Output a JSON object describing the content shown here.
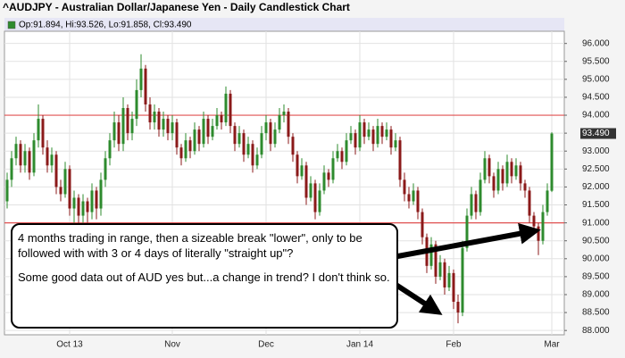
{
  "chart_data": {
    "type": "candlestick",
    "title": "^AUDJPY - Australian Dollar/Japanese Yen - Daily Candlestick Chart",
    "legend_text": "Op:91.894, Hi:93.526, Lo:91.858, Cl:93.490",
    "last_price_label": "93.490",
    "up_color": "#2e8b2e",
    "down_color": "#8b1a1a",
    "hlines": [
      94,
      91
    ],
    "hline_color": "#e05050",
    "grid": true,
    "ylim": [
      87.88,
      96.34
    ],
    "yticks": [
      {
        "value": 88,
        "label": "88.000"
      },
      {
        "value": 88.5,
        "label": "88.500"
      },
      {
        "value": 89,
        "label": "89.000"
      },
      {
        "value": 89.5,
        "label": "89.500"
      },
      {
        "value": 90,
        "label": "90.000"
      },
      {
        "value": 90.5,
        "label": "90.500"
      },
      {
        "value": 91,
        "label": "91.000"
      },
      {
        "value": 91.5,
        "label": "91.500"
      },
      {
        "value": 92,
        "label": "92.000"
      },
      {
        "value": 92.5,
        "label": "92.500"
      },
      {
        "value": 93,
        "label": "93.000"
      },
      {
        "value": 93.5,
        "label": "93.500"
      },
      {
        "value": 94,
        "label": "94.000"
      },
      {
        "value": 94.5,
        "label": "94.500"
      },
      {
        "value": 95,
        "label": "95.000"
      },
      {
        "value": 95.5,
        "label": "95.500"
      },
      {
        "value": 96,
        "label": "96.000"
      }
    ],
    "categories": [
      null,
      null,
      null,
      null,
      null,
      null,
      null,
      null,
      null,
      null,
      null,
      null,
      null,
      null,
      "Oct 13",
      null,
      null,
      null,
      null,
      null,
      null,
      null,
      null,
      null,
      null,
      null,
      null,
      null,
      null,
      null,
      null,
      null,
      null,
      null,
      null,
      null,
      null,
      "Nov",
      null,
      null,
      null,
      null,
      null,
      null,
      null,
      null,
      null,
      null,
      null,
      null,
      null,
      null,
      null,
      null,
      null,
      null,
      null,
      null,
      "Dec",
      null,
      null,
      null,
      null,
      null,
      null,
      null,
      null,
      null,
      null,
      null,
      null,
      null,
      null,
      null,
      null,
      null,
      null,
      null,
      null,
      "Jan 14",
      null,
      null,
      null,
      null,
      null,
      null,
      null,
      null,
      null,
      null,
      null,
      null,
      null,
      null,
      null,
      null,
      null,
      null,
      null,
      null,
      "Feb",
      null,
      null,
      null,
      null,
      null,
      null,
      null,
      null,
      null,
      null,
      null,
      null,
      null,
      null,
      null,
      null,
      null,
      null,
      null,
      null,
      null,
      "Mar"
    ],
    "open": [
      91.6,
      92.2,
      92.8,
      93.2,
      92.6,
      93.0,
      92.4,
      93.3,
      93.9,
      93.1,
      92.6,
      92.9,
      92.0,
      91.8,
      92.5,
      91.4,
      91.7,
      91.2,
      91.6,
      91.3,
      91.9,
      91.4,
      92.2,
      92.8,
      93.3,
      93.8,
      93.2,
      94.2,
      93.5,
      93.9,
      94.7,
      95.3,
      94.3,
      93.8,
      94.1,
      93.6,
      93.9,
      93.5,
      93.8,
      93.1,
      92.8,
      93.3,
      93.0,
      93.6,
      93.2,
      93.9,
      93.4,
      93.7,
      94.0,
      93.8,
      94.6,
      93.7,
      93.2,
      93.5,
      92.9,
      93.2,
      92.6,
      92.9,
      93.5,
      93.8,
      93.2,
      93.6,
      94.0,
      94.1,
      93.4,
      92.9,
      92.3,
      92.6,
      91.7,
      92.1,
      91.3,
      91.9,
      92.4,
      92.2,
      92.8,
      93.0,
      92.7,
      93.3,
      93.5,
      93.1,
      93.8,
      93.4,
      93.6,
      93.2,
      93.7,
      93.4,
      93.6,
      93.1,
      93.3,
      92.2,
      91.8,
      91.6,
      91.9,
      91.3,
      90.6,
      89.8,
      90.4,
      89.5,
      89.9,
      89.2,
      89.6,
      88.8,
      88.5,
      90.3,
      91.2,
      91.8,
      91.3,
      92.2,
      92.8,
      92.3,
      91.9,
      92.5,
      92.1,
      92.7,
      92.3,
      92.6,
      92.1,
      91.9,
      91.2,
      90.9,
      90.5,
      91.3,
      91.894
    ],
    "high": [
      92.4,
      93.0,
      93.4,
      93.3,
      93.2,
      93.1,
      93.5,
      94.3,
      94.0,
      93.3,
      93.1,
      93.0,
      92.2,
      92.7,
      92.6,
      91.9,
      91.8,
      91.8,
      91.7,
      92.1,
      92.0,
      92.4,
      93.0,
      93.5,
      94.1,
      94.0,
      94.5,
      94.3,
      94.1,
      95.0,
      95.7,
      95.4,
      94.5,
      94.3,
      94.2,
      94.1,
      94.0,
      94.0,
      93.9,
      93.2,
      93.5,
      93.4,
      93.8,
      93.7,
      94.1,
      94.0,
      93.9,
      94.2,
      94.1,
      94.8,
      94.7,
      93.8,
      93.7,
      93.6,
      93.4,
      93.3,
      93.1,
      93.7,
      94.0,
      93.9,
      93.8,
      94.2,
      94.3,
      94.2,
      93.5,
      93.0,
      92.8,
      92.7,
      92.3,
      92.2,
      92.1,
      92.6,
      92.5,
      93.0,
      93.2,
      93.1,
      93.5,
      93.7,
      93.6,
      94.0,
      93.9,
      93.8,
      93.7,
      93.9,
      93.8,
      93.8,
      93.7,
      93.5,
      93.4,
      92.4,
      92.0,
      92.1,
      92.0,
      91.4,
      90.7,
      90.6,
      90.5,
      90.1,
      90.0,
      89.8,
      89.7,
      89.0,
      90.5,
      91.4,
      92.0,
      91.9,
      92.4,
      93.0,
      92.9,
      92.4,
      92.7,
      92.6,
      92.9,
      92.8,
      92.8,
      92.7,
      92.2,
      92.0,
      91.3,
      91.0,
      91.5,
      92.1,
      93.526
    ],
    "low": [
      91.4,
      92.0,
      92.6,
      92.4,
      92.4,
      92.2,
      92.3,
      93.1,
      92.9,
      92.4,
      92.4,
      91.8,
      91.6,
      91.7,
      91.2,
      91.0,
      90.9,
      91.0,
      91.0,
      91.1,
      91.1,
      91.2,
      92.0,
      92.6,
      93.1,
      93.0,
      93.0,
      93.3,
      93.3,
      93.7,
      94.5,
      94.1,
      93.6,
      93.6,
      93.4,
      93.4,
      93.3,
      93.3,
      92.9,
      92.6,
      92.7,
      92.8,
      92.9,
      93.0,
      93.1,
      93.2,
      93.3,
      93.6,
      93.6,
      93.7,
      93.5,
      93.0,
      93.1,
      92.7,
      92.8,
      92.4,
      92.5,
      92.8,
      93.3,
      93.0,
      93.1,
      93.5,
      93.8,
      93.2,
      92.7,
      92.1,
      92.2,
      91.5,
      91.6,
      91.1,
      91.2,
      91.8,
      92.0,
      92.1,
      92.7,
      92.5,
      92.6,
      93.2,
      92.9,
      93.0,
      93.2,
      93.3,
      93.0,
      93.1,
      93.2,
      93.3,
      92.9,
      93.0,
      92.0,
      91.6,
      91.4,
      91.5,
      91.1,
      90.4,
      89.6,
      89.7,
      89.3,
      89.4,
      89.0,
      89.1,
      88.6,
      88.2,
      88.4,
      90.2,
      91.1,
      91.1,
      91.2,
      92.1,
      92.1,
      91.7,
      91.8,
      91.9,
      92.0,
      92.1,
      92.2,
      91.9,
      91.7,
      91.0,
      90.7,
      90.1,
      90.4,
      91.2,
      91.858
    ],
    "close": [
      92.2,
      92.8,
      93.2,
      92.6,
      93.0,
      92.4,
      93.3,
      93.9,
      93.1,
      92.6,
      92.9,
      92.0,
      91.8,
      92.5,
      91.4,
      91.7,
      91.2,
      91.6,
      91.3,
      91.9,
      91.4,
      92.2,
      92.8,
      93.3,
      93.8,
      93.2,
      94.2,
      93.5,
      93.9,
      94.7,
      95.3,
      94.3,
      93.8,
      94.1,
      93.6,
      93.9,
      93.5,
      93.8,
      93.1,
      92.8,
      93.3,
      93.0,
      93.6,
      93.2,
      93.9,
      93.4,
      93.7,
      94.0,
      93.8,
      94.6,
      93.7,
      93.2,
      93.5,
      92.9,
      93.2,
      92.6,
      92.9,
      93.5,
      93.8,
      93.2,
      93.6,
      94.0,
      94.1,
      93.4,
      92.9,
      92.3,
      92.6,
      91.7,
      92.1,
      91.3,
      91.9,
      92.4,
      92.2,
      92.8,
      93.0,
      92.7,
      93.3,
      93.5,
      93.1,
      93.8,
      93.4,
      93.6,
      93.2,
      93.7,
      93.4,
      93.6,
      93.1,
      93.3,
      92.2,
      91.8,
      91.6,
      91.9,
      91.3,
      90.6,
      89.8,
      90.4,
      89.5,
      89.9,
      89.2,
      89.6,
      88.8,
      88.5,
      90.3,
      91.2,
      91.8,
      91.3,
      92.2,
      92.8,
      92.3,
      91.9,
      92.5,
      92.1,
      92.7,
      92.3,
      92.6,
      92.1,
      91.9,
      91.2,
      90.9,
      90.5,
      91.3,
      91.9,
      93.49
    ]
  },
  "annotation": {
    "paragraphs": [
      "4 months trading in range, then a sizeable break \"lower\", only to be followed with with 3 or 4 days of literally \"straight up\"?",
      "Some good data out of AUD yes but...a change in trend? I don't think so."
    ]
  }
}
